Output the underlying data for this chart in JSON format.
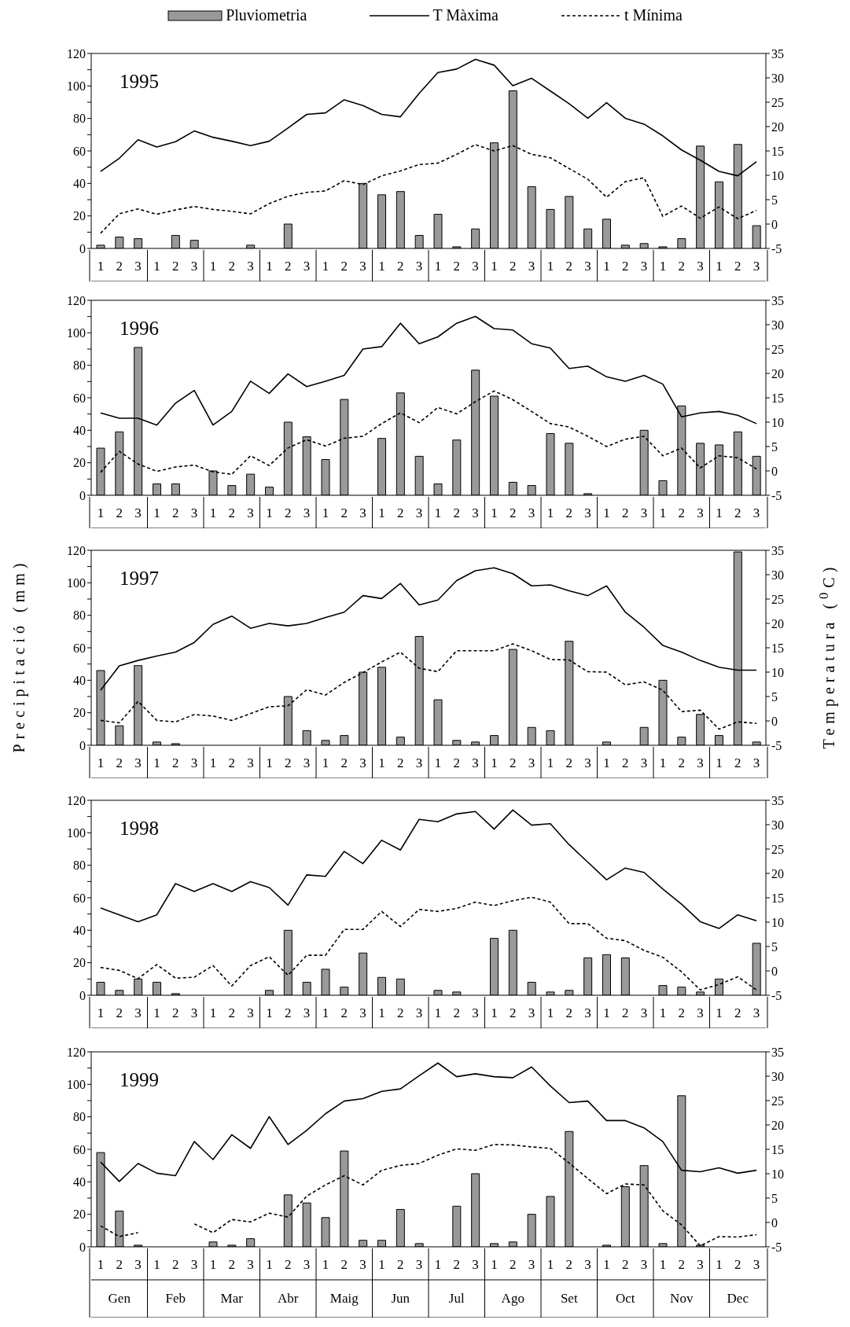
{
  "chart_data": [
    {
      "type": "bar",
      "title": "1995",
      "legend": "top",
      "categories": [
        "1",
        "2",
        "3",
        "1",
        "2",
        "3",
        "1",
        "2",
        "3",
        "1",
        "2",
        "3",
        "1",
        "2",
        "3",
        "1",
        "2",
        "3",
        "1",
        "2",
        "3",
        "1",
        "2",
        "3",
        "1",
        "2",
        "3",
        "1",
        "2",
        "3",
        "1",
        "2",
        "3",
        "1",
        "2",
        "3"
      ],
      "series": [
        {
          "name": "Pluviometria",
          "color": "#999999",
          "values": [
            2,
            7,
            6,
            null,
            8,
            5,
            null,
            null,
            2,
            null,
            15,
            null,
            null,
            null,
            40,
            33,
            35,
            8,
            21,
            1,
            12,
            65,
            97,
            38,
            24,
            32,
            12,
            18,
            2,
            3,
            1,
            6,
            63,
            41,
            64,
            14
          ]
        },
        {
          "name": "T Màxima",
          "type": "line",
          "axis": "y2",
          "line_style": "solid",
          "color": "#000000",
          "values": [
            10.8,
            13.5,
            17.3,
            15.8,
            16.9,
            19.1,
            17.8,
            17.0,
            16.1,
            17.0,
            19.7,
            22.5,
            22.8,
            25.5,
            24.3,
            22.5,
            22.0,
            26.8,
            31.1,
            31.8,
            33.8,
            32.6,
            28.4,
            29.9,
            27.3,
            24.7,
            21.7,
            24.9,
            21.7,
            20.5,
            18.1,
            15.2,
            13.1,
            10.8,
            9.9,
            12.8
          ]
        },
        {
          "name": "t Mínima",
          "type": "line",
          "axis": "y2",
          "line_style": "dashed",
          "color": "#000000",
          "values": [
            -1.9,
            2.1,
            3.1,
            2.0,
            2.9,
            3.6,
            3.0,
            2.6,
            2.1,
            4.2,
            5.7,
            6.5,
            6.8,
            8.9,
            8.1,
            9.9,
            10.9,
            12.2,
            12.5,
            14.3,
            16.3,
            15.0,
            16.1,
            14.3,
            13.6,
            11.4,
            9.2,
            5.5,
            8.7,
            9.5,
            1.6,
            3.7,
            1.2,
            3.5,
            1.1,
            2.8
          ]
        }
      ],
      "ylim": [
        0,
        120
      ],
      "yticks": [
        0,
        {
          "value": 10,
          "label": null
        },
        20,
        {
          "value": 30,
          "label": null
        },
        40,
        {
          "value": 50,
          "label": null
        },
        60,
        {
          "value": 70,
          "label": null
        },
        80,
        {
          "value": 90,
          "label": null
        },
        100,
        {
          "value": 110,
          "label": null
        },
        120
      ],
      "y2lim": [
        -5,
        35
      ],
      "y2ticks": [
        -5,
        0,
        5,
        10,
        15,
        20,
        25,
        30,
        35
      ]
    },
    {
      "type": "bar",
      "title": "1996",
      "categories": [
        "1",
        "2",
        "3",
        "1",
        "2",
        "3",
        "1",
        "2",
        "3",
        "1",
        "2",
        "3",
        "1",
        "2",
        "3",
        "1",
        "2",
        "3",
        "1",
        "2",
        "3",
        "1",
        "2",
        "3",
        "1",
        "2",
        "3",
        "1",
        "2",
        "3",
        "1",
        "2",
        "3",
        "1",
        "2",
        "3"
      ],
      "series": [
        {
          "color": "#999999",
          "values": [
            29,
            39,
            91,
            7,
            7,
            null,
            15,
            6,
            13,
            5,
            45,
            36,
            22,
            59,
            null,
            35,
            63,
            24,
            7,
            34,
            77,
            61,
            8,
            6,
            38,
            32,
            1,
            null,
            null,
            40,
            9,
            55,
            32,
            31,
            39,
            24
          ]
        },
        {
          "type": "line",
          "axis": "y2",
          "line_style": "solid",
          "color": "#000000",
          "values": [
            11.9,
            10.8,
            10.8,
            9.4,
            13.9,
            16.5,
            9.4,
            12.2,
            18.4,
            15.9,
            19.9,
            17.3,
            18.4,
            19.6,
            25.0,
            25.5,
            30.3,
            26.1,
            27.5,
            30.3,
            31.7,
            29.2,
            28.9,
            26.1,
            25.2,
            21.0,
            21.5,
            19.3,
            18.4,
            19.6,
            17.8,
            11.1,
            11.9,
            12.2,
            11.4,
            9.7
          ]
        },
        {
          "type": "line",
          "axis": "y2",
          "line_style": "dashed",
          "color": "#000000",
          "values": [
            -0.3,
            4.0,
            1.4,
            -0.1,
            0.8,
            1.2,
            -0.2,
            -0.7,
            3.1,
            1.1,
            4.7,
            6.4,
            5.1,
            6.7,
            7.1,
            9.7,
            11.9,
            9.9,
            13.0,
            11.7,
            14.2,
            16.4,
            14.6,
            12.2,
            9.7,
            9.0,
            7.1,
            5.0,
            6.5,
            7.1,
            3.1,
            4.7,
            0.6,
            3.1,
            2.7,
            0.4
          ]
        }
      ],
      "ylim": [
        0,
        120
      ],
      "yticks": [
        0,
        {
          "value": 10,
          "label": null
        },
        20,
        {
          "value": 30,
          "label": null
        },
        40,
        {
          "value": 50,
          "label": null
        },
        60,
        {
          "value": 70,
          "label": null
        },
        80,
        {
          "value": 90,
          "label": null
        },
        100,
        {
          "value": 110,
          "label": null
        },
        120
      ],
      "y2lim": [
        -5,
        35
      ],
      "y2ticks": [
        -5,
        0,
        5,
        10,
        15,
        20,
        25,
        30,
        35
      ]
    },
    {
      "type": "bar",
      "title": "1997",
      "ylabel": "Precipitació (mm)",
      "y2label": "Temperatura ($^{0}$C)",
      "categories": [
        "1",
        "2",
        "3",
        "1",
        "2",
        "3",
        "1",
        "2",
        "3",
        "1",
        "2",
        "3",
        "1",
        "2",
        "3",
        "1",
        "2",
        "3",
        "1",
        "2",
        "3",
        "1",
        "2",
        "3",
        "1",
        "2",
        "3",
        "1",
        "2",
        "3",
        "1",
        "2",
        "3",
        "1",
        "2",
        "3"
      ],
      "series": [
        {
          "color": "#999999",
          "values": [
            46,
            12,
            49,
            2,
            1,
            null,
            null,
            null,
            null,
            null,
            30,
            9,
            3,
            6,
            45,
            48,
            5,
            67,
            28,
            3,
            2,
            6,
            59,
            11,
            9,
            64,
            null,
            2,
            null,
            11,
            40,
            5,
            19,
            6,
            119,
            2
          ]
        },
        {
          "type": "line",
          "axis": "y2",
          "line_style": "solid",
          "color": "#000000",
          "values": [
            6.3,
            11.3,
            12.4,
            13.3,
            14.1,
            16.1,
            19.8,
            21.5,
            19.0,
            20.0,
            19.5,
            20.0,
            21.2,
            22.3,
            25.7,
            25.1,
            28.2,
            23.8,
            24.8,
            28.8,
            30.8,
            31.4,
            30.2,
            27.7,
            27.9,
            26.7,
            25.7,
            27.7,
            22.3,
            19.2,
            15.5,
            14.1,
            12.4,
            11.0,
            10.4,
            10.4
          ]
        },
        {
          "type": "line",
          "axis": "y2",
          "line_style": "dashed",
          "color": "#000000",
          "values": [
            0.1,
            -0.4,
            4.0,
            0.1,
            -0.2,
            1.3,
            1.0,
            0.1,
            1.5,
            2.9,
            3.1,
            6.4,
            5.3,
            7.9,
            9.9,
            12.1,
            14.1,
            10.8,
            10.1,
            14.4,
            14.4,
            14.4,
            15.8,
            14.4,
            12.6,
            12.5,
            10.1,
            10.0,
            7.4,
            8.0,
            6.3,
            1.9,
            2.2,
            -1.7,
            -0.2,
            -0.5
          ]
        }
      ],
      "ylim": [
        0,
        120
      ],
      "yticks": [
        0,
        {
          "value": 10,
          "label": null
        },
        20,
        {
          "value": 30,
          "label": null
        },
        40,
        {
          "value": 50,
          "label": null
        },
        60,
        {
          "value": 70,
          "label": null
        },
        80,
        {
          "value": 90,
          "label": null
        },
        100,
        {
          "value": 110,
          "label": null
        },
        120
      ],
      "y2lim": [
        -5,
        35
      ],
      "y2ticks": [
        -5,
        0,
        5,
        10,
        15,
        20,
        25,
        30,
        35
      ]
    },
    {
      "type": "bar",
      "title": "1998",
      "categories": [
        "1",
        "2",
        "3",
        "1",
        "2",
        "3",
        "1",
        "2",
        "3",
        "1",
        "2",
        "3",
        "1",
        "2",
        "3",
        "1",
        "2",
        "3",
        "1",
        "2",
        "3",
        "1",
        "2",
        "3",
        "1",
        "2",
        "3",
        "1",
        "2",
        "3",
        "1",
        "2",
        "3",
        "1",
        "2",
        "3"
      ],
      "series": [
        {
          "color": "#999999",
          "values": [
            8,
            3,
            10,
            8,
            1,
            null,
            null,
            null,
            null,
            3,
            40,
            8,
            16,
            5,
            26,
            11,
            10,
            null,
            3,
            2,
            null,
            35,
            40,
            8,
            2,
            3,
            23,
            25,
            23,
            null,
            6,
            5,
            2,
            10,
            null,
            32
          ]
        },
        {
          "type": "line",
          "axis": "y2",
          "line_style": "solid",
          "color": "#000000",
          "values": [
            12.9,
            11.5,
            10.1,
            11.5,
            17.9,
            16.3,
            17.9,
            16.3,
            18.3,
            17.1,
            13.5,
            19.7,
            19.4,
            24.5,
            22.0,
            26.8,
            24.8,
            31.1,
            30.6,
            32.2,
            32.7,
            29.1,
            33.0,
            29.9,
            30.2,
            25.9,
            22.3,
            18.7,
            21.1,
            20.2,
            16.8,
            13.7,
            10.1,
            8.7,
            11.5,
            10.3
          ]
        },
        {
          "type": "line",
          "axis": "y2",
          "line_style": "dashed",
          "color": "#000000",
          "values": [
            0.7,
            0.1,
            -1.6,
            1.3,
            -1.5,
            -1.3,
            1.1,
            -3.1,
            1.1,
            2.9,
            -0.9,
            3.2,
            3.2,
            8.5,
            8.5,
            12.2,
            9.1,
            12.6,
            12.2,
            12.8,
            14.1,
            13.4,
            14.4,
            15.1,
            14.1,
            9.7,
            9.7,
            6.7,
            6.2,
            4.2,
            2.8,
            -0.2,
            -3.9,
            -2.8,
            -1.2,
            -3.9
          ]
        }
      ],
      "ylim": [
        0,
        120
      ],
      "yticks": [
        0,
        {
          "value": 10,
          "label": null
        },
        20,
        {
          "value": 30,
          "label": null
        },
        40,
        {
          "value": 50,
          "label": null
        },
        60,
        {
          "value": 70,
          "label": null
        },
        80,
        {
          "value": 90,
          "label": null
        },
        100,
        {
          "value": 110,
          "label": null
        },
        120
      ],
      "y2lim": [
        -5,
        35
      ],
      "y2ticks": [
        -5,
        0,
        5,
        10,
        15,
        20,
        25,
        30,
        35
      ]
    },
    {
      "type": "bar",
      "title": "1999",
      "annotations": [
        "Gen",
        "Feb",
        "Mar",
        "Abr",
        "Maig",
        "Jun",
        "Jul",
        "Ago",
        "Set",
        "Oct",
        "Nov",
        "Dec"
      ],
      "categories": [
        "1",
        "2",
        "3",
        "1",
        "2",
        "3",
        "1",
        "2",
        "3",
        "1",
        "2",
        "3",
        "1",
        "2",
        "3",
        "1",
        "2",
        "3",
        "1",
        "2",
        "3",
        "1",
        "2",
        "3",
        "1",
        "2",
        "3",
        "1",
        "2",
        "3",
        "1",
        "2",
        "3",
        "1",
        "2",
        "3"
      ],
      "series": [
        {
          "color": "#999999",
          "values": [
            58,
            22,
            1,
            null,
            null,
            null,
            3,
            1,
            5,
            null,
            32,
            27,
            18,
            59,
            4,
            4,
            23,
            2,
            null,
            25,
            45,
            2,
            3,
            20,
            31,
            71,
            null,
            1,
            37,
            50,
            2,
            93,
            1,
            null,
            null,
            null
          ]
        },
        {
          "type": "line",
          "axis": "y2",
          "line_style": "solid",
          "color": "#000000",
          "values": [
            12.4,
            8.4,
            12.1,
            10.1,
            9.6,
            16.6,
            12.9,
            18.0,
            15.2,
            21.7,
            16.0,
            18.9,
            22.3,
            24.9,
            25.4,
            26.9,
            27.4,
            30.1,
            32.7,
            29.9,
            30.5,
            29.9,
            29.7,
            31.9,
            28.0,
            24.6,
            24.9,
            20.9,
            20.9,
            19.4,
            16.6,
            10.7,
            10.4,
            11.2,
            10.1,
            10.7
          ]
        },
        {
          "type": "line",
          "axis": "y2",
          "line_style": "dashed",
          "color": "#000000",
          "values": [
            -0.7,
            -2.9,
            -2.1,
            null,
            null,
            -0.3,
            -2.1,
            0.6,
            0.1,
            1.9,
            1.1,
            5.4,
            7.7,
            9.6,
            7.7,
            10.7,
            11.7,
            12.1,
            13.8,
            15.1,
            14.8,
            16.0,
            15.9,
            15.5,
            15.2,
            12.2,
            9.0,
            5.9,
            7.9,
            7.7,
            2.4,
            -0.5,
            -4.8,
            -2.9,
            -3.0,
            -2.5
          ]
        }
      ],
      "ylim": [
        0,
        120
      ],
      "yticks": [
        0,
        {
          "value": 10,
          "label": null
        },
        20,
        {
          "value": 30,
          "label": null
        },
        40,
        {
          "value": 50,
          "label": null
        },
        60,
        {
          "value": 70,
          "label": null
        },
        80,
        {
          "value": 90,
          "label": null
        },
        100,
        {
          "value": 110,
          "label": null
        },
        120
      ],
      "y2lim": [
        -5,
        35
      ],
      "y2ticks": [
        -5,
        0,
        5,
        10,
        15,
        20,
        25,
        30,
        35
      ]
    }
  ]
}
